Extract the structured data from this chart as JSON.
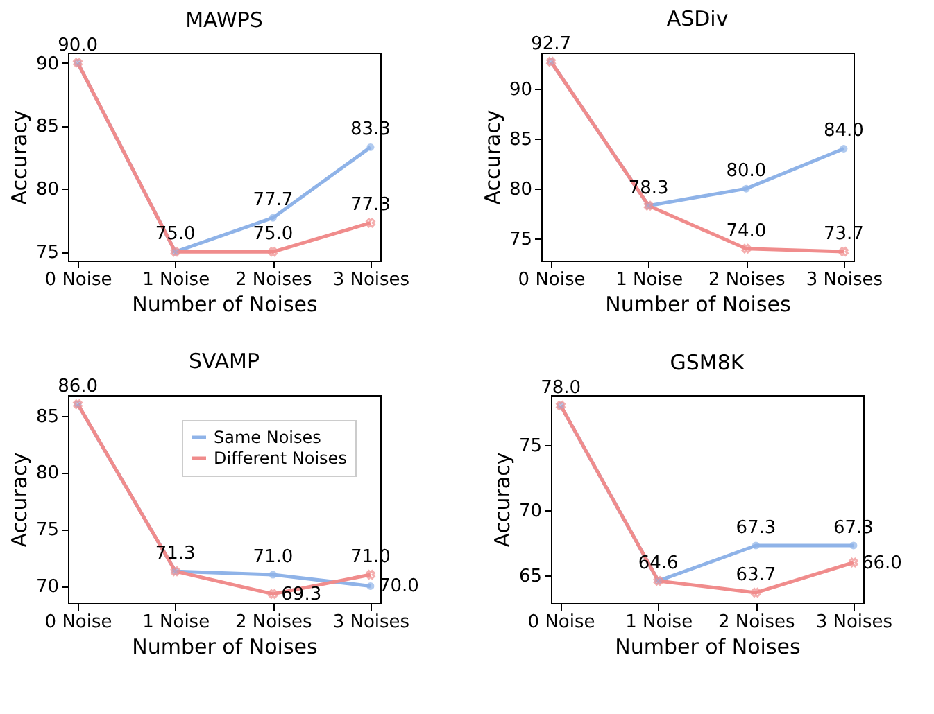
{
  "chart_data": [
    {
      "type": "line",
      "title": "MAWPS",
      "xlabel": "Number of Noises",
      "ylabel": "Accuracy",
      "categories": [
        "0 Noise",
        "1 Noise",
        "2 Noises",
        "3 Noises"
      ],
      "ylim": [
        74.3,
        90.8
      ],
      "yticks": [
        75,
        80,
        85,
        90
      ],
      "grid": false,
      "legend": false,
      "series": [
        {
          "color": "#8fb3e8",
          "marker": "circle",
          "values": [
            90.0,
            75.0,
            77.7,
            83.3
          ],
          "value_labels": [
            "90.0",
            "75.0",
            "77.7",
            "83.3"
          ]
        },
        {
          "color": "#f08c8c",
          "marker": "cross",
          "values": [
            90.0,
            75.0,
            75.0,
            77.3
          ],
          "value_labels": [
            null,
            null,
            "75.0",
            "77.3"
          ]
        }
      ]
    },
    {
      "type": "line",
      "title": "ASDiv",
      "xlabel": "Number of Noises",
      "ylabel": "Accuracy",
      "categories": [
        "0 Noise",
        "1 Noise",
        "2 Noises",
        "3 Noises"
      ],
      "ylim": [
        72.8,
        93.6
      ],
      "yticks": [
        75,
        80,
        85,
        90
      ],
      "grid": false,
      "legend": false,
      "series": [
        {
          "color": "#8fb3e8",
          "marker": "circle",
          "values": [
            92.7,
            78.3,
            80.0,
            84.0
          ],
          "value_labels": [
            "92.7",
            "78.3",
            "80.0",
            "84.0"
          ]
        },
        {
          "color": "#f08c8c",
          "marker": "cross",
          "values": [
            92.7,
            78.3,
            74.0,
            73.7
          ],
          "value_labels": [
            null,
            null,
            "74.0",
            "73.7"
          ]
        }
      ]
    },
    {
      "type": "line",
      "title": "SVAMP",
      "xlabel": "Number of Noises",
      "ylabel": "Accuracy",
      "categories": [
        "0 Noise",
        "1 Noise",
        "2 Noises",
        "3 Noises"
      ],
      "ylim": [
        68.5,
        86.8
      ],
      "yticks": [
        70,
        75,
        80,
        85
      ],
      "grid": false,
      "legend": "top right",
      "series": [
        {
          "name": "Same Noises",
          "color": "#8fb3e8",
          "marker": "circle",
          "values": [
            86.0,
            71.3,
            71.0,
            70.0
          ],
          "value_labels": [
            "86.0",
            "71.3",
            "71.0",
            "70.0"
          ]
        },
        {
          "name": "Different Noises",
          "color": "#f08c8c",
          "marker": "cross",
          "values": [
            86.0,
            71.3,
            69.3,
            71.0
          ],
          "value_labels": [
            null,
            null,
            "69.3",
            "71.0"
          ]
        }
      ]
    },
    {
      "type": "line",
      "title": "GSM8K",
      "xlabel": "Number of Noises",
      "ylabel": "Accuracy",
      "categories": [
        "0 Noise",
        "1 Noise",
        "2 Noises",
        "3 Noises"
      ],
      "ylim": [
        62.9,
        78.8
      ],
      "yticks": [
        65,
        70,
        75
      ],
      "grid": false,
      "legend": false,
      "series": [
        {
          "color": "#8fb3e8",
          "marker": "circle",
          "values": [
            78.0,
            64.6,
            67.3,
            67.3
          ],
          "value_labels": [
            "78.0",
            "64.6",
            "67.3",
            "67.3"
          ]
        },
        {
          "color": "#f08c8c",
          "marker": "cross",
          "values": [
            78.0,
            64.6,
            63.7,
            66.0
          ],
          "value_labels": [
            null,
            null,
            "63.7",
            "66.0"
          ]
        }
      ]
    }
  ]
}
